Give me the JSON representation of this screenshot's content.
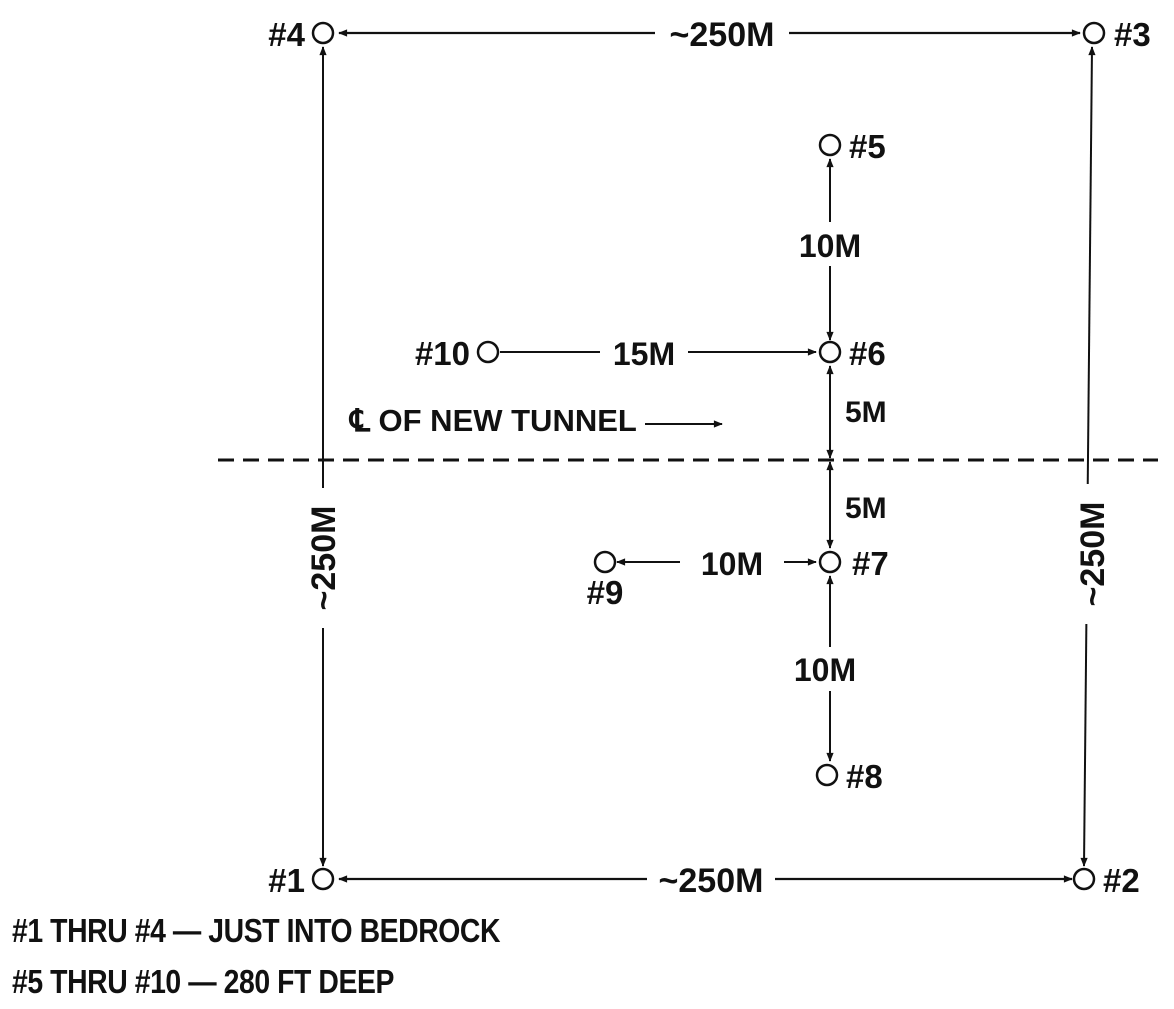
{
  "wells": [
    {
      "id": "1",
      "label": "#1"
    },
    {
      "id": "2",
      "label": "#2"
    },
    {
      "id": "3",
      "label": "#3"
    },
    {
      "id": "4",
      "label": "#4"
    },
    {
      "id": "5",
      "label": "#5"
    },
    {
      "id": "6",
      "label": "#6"
    },
    {
      "id": "7",
      "label": "#7"
    },
    {
      "id": "8",
      "label": "#8"
    },
    {
      "id": "9",
      "label": "#9"
    },
    {
      "id": "10",
      "label": "#10"
    }
  ],
  "distances": {
    "top": "~250M",
    "bottom": "~250M",
    "left": "~250M",
    "right": "~250M",
    "w5_w6": "10M",
    "w10_w6": "15M",
    "w6_centerline": "5M",
    "centerline_w7": "5M",
    "w9_w7": "10M",
    "w7_w8": "10M"
  },
  "centerline_label": "℄ OF NEW TUNNEL",
  "notes": [
    "#1 THRU #4 — JUST INTO BEDROCK",
    "#5 THRU #10 — 280 FT DEEP"
  ]
}
